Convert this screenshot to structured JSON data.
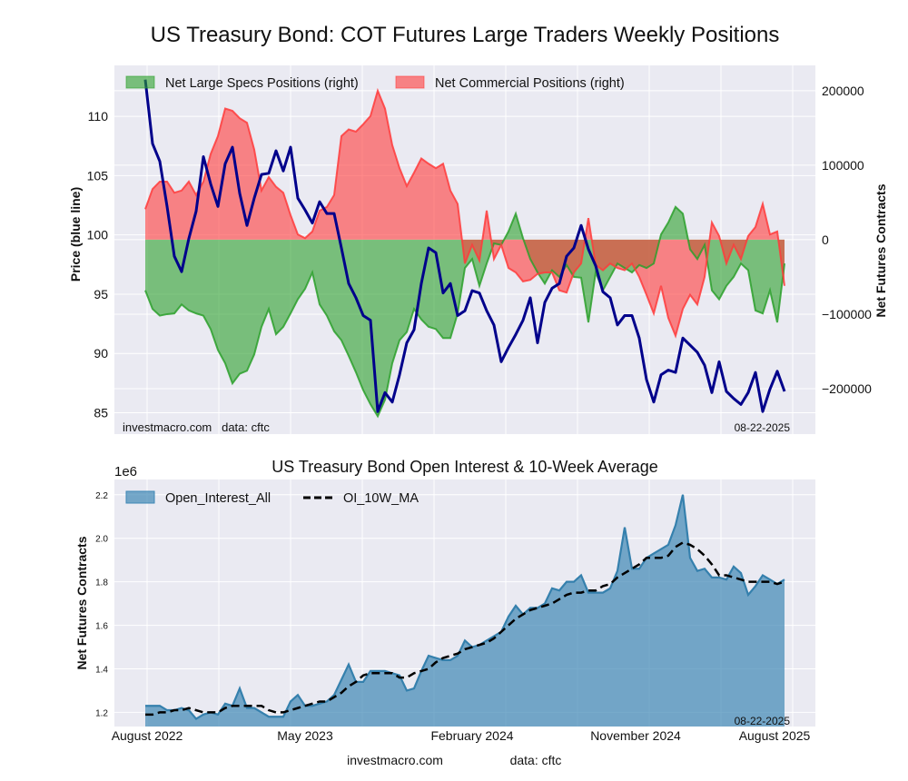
{
  "chart_data": [
    {
      "type": "area",
      "title": "US Treasury Bond: COT Futures Large Traders Weekly Positions",
      "ylabel_left": "Price (blue line)",
      "ylabel_right": "Net Futures Contracts",
      "yticks_left": [
        "85",
        "90",
        "95",
        "100",
        "105",
        "110"
      ],
      "yticks_left_values": [
        85,
        90,
        95,
        100,
        105,
        110
      ],
      "ylim_left": [
        83.2,
        114.3
      ],
      "yticks_right": [
        "−200000",
        "−100000",
        "0",
        "100000",
        "200000"
      ],
      "yticks_right_values": [
        -200000,
        -100000,
        0,
        100000,
        200000
      ],
      "ylim_right": [
        -261000,
        234000
      ],
      "x_start": "2022-08",
      "x_end": "2025-08-22",
      "sampling": "every 2 weeks",
      "grid": true,
      "legend_position": "top-left",
      "annotation_left": "investmacro.com   data: cftc",
      "annotation_right": "08-22-2025",
      "series": [
        {
          "name": "Net Large Specs Positions (right)",
          "kind": "fill",
          "axis": "right",
          "color": "#2ca02c",
          "values": [
            -68000,
            -93000,
            -102000,
            -100000,
            -99000,
            -87000,
            -95000,
            -99000,
            -102000,
            -120000,
            -148000,
            -166000,
            -193000,
            -180000,
            -176000,
            -154000,
            -117000,
            -93000,
            -127000,
            -117000,
            -99000,
            -80000,
            -66000,
            -44000,
            -87000,
            -102000,
            -123000,
            -135000,
            -156000,
            -178000,
            -202000,
            -221000,
            -237000,
            -215000,
            -166000,
            -135000,
            -124000,
            -93000,
            -107000,
            -117000,
            -120000,
            -132000,
            -132000,
            -99000,
            -38000,
            -26000,
            -62000,
            -32000,
            -5000,
            -7000,
            11000,
            35000,
            2000,
            -26000,
            -44000,
            -59000,
            -41000,
            -50000,
            -34000,
            -50000,
            -51000,
            -111000,
            -44000,
            -68000,
            -50000,
            -32000,
            -38000,
            -44000,
            -34000,
            -38000,
            -32000,
            7000,
            23000,
            44000,
            35000,
            -13000,
            -26000,
            -7000,
            -68000,
            -80000,
            -62000,
            -50000,
            -32000,
            -41000,
            -95000,
            -99000,
            -68000,
            -111000,
            -32000
          ]
        },
        {
          "name": "Net Commercial Positions (right)",
          "kind": "fill",
          "axis": "right",
          "color": "#ff3b3b",
          "values": [
            41000,
            68000,
            78000,
            78000,
            63000,
            66000,
            78000,
            60000,
            78000,
            115000,
            139000,
            176000,
            173000,
            163000,
            157000,
            121000,
            66000,
            84000,
            71000,
            63000,
            33000,
            7000,
            2000,
            11000,
            39000,
            44000,
            60000,
            139000,
            148000,
            145000,
            155000,
            166000,
            200000,
            176000,
            127000,
            96000,
            72000,
            90000,
            109000,
            102000,
            96000,
            102000,
            66000,
            48000,
            -32000,
            -7000,
            -28000,
            39000,
            -26000,
            -7000,
            -38000,
            -44000,
            -56000,
            -54000,
            -46000,
            -44000,
            -44000,
            -68000,
            -71000,
            -44000,
            -32000,
            29000,
            -34000,
            -41000,
            -32000,
            -38000,
            -41000,
            -32000,
            -50000,
            -74000,
            -99000,
            -62000,
            -105000,
            -129000,
            -93000,
            -74000,
            -87000,
            -50000,
            23000,
            5000,
            -32000,
            -7000,
            -26000,
            5000,
            17000,
            48000,
            7000,
            11000,
            -62000
          ]
        },
        {
          "name": "Price",
          "kind": "line",
          "axis": "left",
          "color": "#00008b",
          "values": [
            113.1,
            107.7,
            106.2,
            102.4,
            98.2,
            96.9,
            99.7,
            102.0,
            106.6,
            104.3,
            102.4,
            106.0,
            107.4,
            103.5,
            100.8,
            103.1,
            105.1,
            105.2,
            107.1,
            105.4,
            107.4,
            103.1,
            102.1,
            101.0,
            102.8,
            101.8,
            101.8,
            98.9,
            95.9,
            94.7,
            93.2,
            92.8,
            85.1,
            86.7,
            85.9,
            88.2,
            90.9,
            92.0,
            95.9,
            98.9,
            98.5,
            95.1,
            95.9,
            93.2,
            93.6,
            95.3,
            95.1,
            93.6,
            92.4,
            89.3,
            90.5,
            91.6,
            92.8,
            94.7,
            90.9,
            94.3,
            95.5,
            95.9,
            98.2,
            98.9,
            100.8,
            98.8,
            97.4,
            95.2,
            94.7,
            92.4,
            93.2,
            93.2,
            91.3,
            87.8,
            85.9,
            88.2,
            88.6,
            88.4,
            91.3,
            90.7,
            90.1,
            89.0,
            86.7,
            89.3,
            86.8,
            86.2,
            85.7,
            86.7,
            88.4,
            85.1,
            87.0,
            88.5,
            86.8
          ]
        }
      ]
    },
    {
      "type": "area",
      "title": "US Treasury Bond Open Interest & 10-Week Average",
      "ylabel": "Net Futures Contracts",
      "y_scale_label": "1e6",
      "yticks": [
        "1.2",
        "1.4",
        "1.6",
        "1.8",
        "2.0",
        "2.2"
      ],
      "yticks_values": [
        1.2,
        1.4,
        1.6,
        1.8,
        2.0,
        2.2
      ],
      "ylim": [
        1.135,
        2.27
      ],
      "xticks": [
        "August 2022",
        "May 2023",
        "February 2024",
        "November 2024",
        "August 2025"
      ],
      "x_start": "2022-08",
      "x_end": "2025-08-22",
      "sampling": "every 2 weeks",
      "grid": true,
      "legend_position": "top-left",
      "annotation_right": "08-22-2025",
      "series": [
        {
          "name": "Open_Interest_All",
          "kind": "fill",
          "color": "#3f88b5",
          "values": [
            1.23,
            1.23,
            1.23,
            1.21,
            1.21,
            1.22,
            1.21,
            1.17,
            1.19,
            1.2,
            1.19,
            1.24,
            1.23,
            1.31,
            1.22,
            1.22,
            1.2,
            1.18,
            1.18,
            1.18,
            1.25,
            1.28,
            1.23,
            1.23,
            1.24,
            1.25,
            1.28,
            1.35,
            1.42,
            1.34,
            1.34,
            1.39,
            1.39,
            1.39,
            1.38,
            1.37,
            1.3,
            1.31,
            1.39,
            1.46,
            1.45,
            1.44,
            1.44,
            1.46,
            1.53,
            1.5,
            1.51,
            1.53,
            1.55,
            1.57,
            1.64,
            1.69,
            1.65,
            1.68,
            1.68,
            1.7,
            1.77,
            1.76,
            1.8,
            1.8,
            1.83,
            1.75,
            1.75,
            1.75,
            1.77,
            1.85,
            2.05,
            1.86,
            1.86,
            1.91,
            1.93,
            1.95,
            1.97,
            2.06,
            2.2,
            1.91,
            1.85,
            1.86,
            1.82,
            1.82,
            1.81,
            1.87,
            1.84,
            1.74,
            1.78,
            1.83,
            1.81,
            1.79,
            1.81
          ]
        },
        {
          "name": "OI_10W_MA",
          "kind": "dashed-line",
          "color": "#000000",
          "values": [
            1.19,
            1.19,
            1.2,
            1.2,
            1.21,
            1.21,
            1.22,
            1.21,
            1.2,
            1.2,
            1.2,
            1.22,
            1.23,
            1.23,
            1.23,
            1.23,
            1.23,
            1.21,
            1.2,
            1.2,
            1.21,
            1.22,
            1.23,
            1.24,
            1.25,
            1.25,
            1.27,
            1.29,
            1.32,
            1.34,
            1.37,
            1.38,
            1.38,
            1.38,
            1.38,
            1.36,
            1.36,
            1.38,
            1.39,
            1.4,
            1.43,
            1.45,
            1.46,
            1.47,
            1.49,
            1.5,
            1.51,
            1.52,
            1.54,
            1.57,
            1.6,
            1.63,
            1.65,
            1.67,
            1.68,
            1.69,
            1.7,
            1.72,
            1.74,
            1.75,
            1.75,
            1.76,
            1.76,
            1.78,
            1.79,
            1.82,
            1.84,
            1.86,
            1.88,
            1.91,
            1.91,
            1.91,
            1.92,
            1.96,
            1.98,
            1.97,
            1.95,
            1.92,
            1.88,
            1.83,
            1.83,
            1.82,
            1.81,
            1.8,
            1.8,
            1.8,
            1.8,
            1.79,
            1.8
          ]
        }
      ]
    }
  ],
  "footer": {
    "site": "investmacro.com",
    "source": "data: cftc"
  }
}
